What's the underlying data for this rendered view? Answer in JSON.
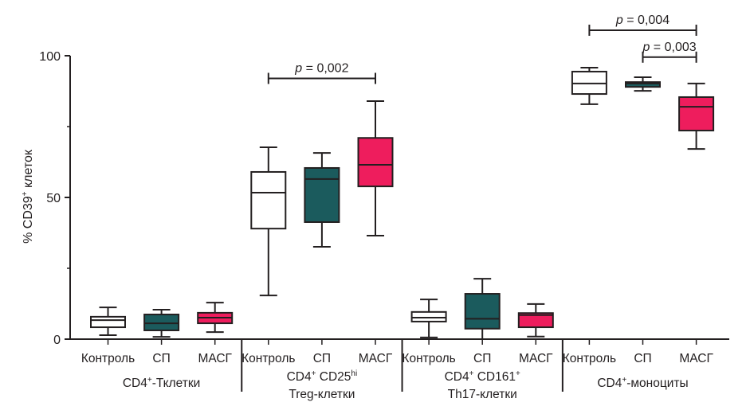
{
  "chart_data": {
    "type": "boxplot",
    "title": "",
    "ylabel": "% CD39+ клеток",
    "ylabel_parts": {
      "pre": "% CD39",
      "sup": "+",
      "post": " клеток"
    },
    "ylim": [
      0,
      100
    ],
    "yticks": [
      0,
      50,
      100
    ],
    "yticks_minor": [
      25,
      75
    ],
    "grid": false,
    "colors": {
      "Контроль": "#ffffff",
      "СП": "#1b5b5d",
      "МАСГ": "#ee1d5d"
    },
    "groups": [
      {
        "name": "CD4+-Тклетки",
        "label_lines": [
          [
            {
              "t": "CD4"
            },
            {
              "t": "+",
              "sup": true
            },
            {
              "t": "-Тклетки"
            }
          ]
        ],
        "boxes": [
          {
            "category": "Контроль",
            "whisker_low": 1.4,
            "q1": 4.2,
            "median": 6.7,
            "q3": 7.9,
            "whisker_high": 11.2
          },
          {
            "category": "СП",
            "whisker_low": 0.8,
            "q1": 3.1,
            "median": 5.6,
            "q3": 8.7,
            "whisker_high": 10.4
          },
          {
            "category": "МАСГ",
            "whisker_low": 2.5,
            "q1": 5.6,
            "median": 7.6,
            "q3": 9.3,
            "whisker_high": 12.9
          }
        ]
      },
      {
        "name": "CD4+ CD25hi Treg-клетки",
        "label_lines": [
          [
            {
              "t": "CD4"
            },
            {
              "t": "+",
              "sup": true
            },
            {
              "t": " CD25"
            },
            {
              "t": "hi",
              "sup": true
            }
          ],
          [
            {
              "t": "Treg-клетки"
            }
          ]
        ],
        "boxes": [
          {
            "category": "Контроль",
            "whisker_low": 15.4,
            "q1": 39.0,
            "median": 51.7,
            "q3": 59.0,
            "whisker_high": 67.7
          },
          {
            "category": "СП",
            "whisker_low": 32.6,
            "q1": 41.3,
            "median": 56.5,
            "q3": 60.4,
            "whisker_high": 65.7
          },
          {
            "category": "МАСГ",
            "whisker_low": 36.5,
            "q1": 53.9,
            "median": 61.5,
            "q3": 71.0,
            "whisker_high": 84.0
          }
        ]
      },
      {
        "name": "CD4+ CD161+ Th17-клетки",
        "label_lines": [
          [
            {
              "t": "CD4"
            },
            {
              "t": "+",
              "sup": true
            },
            {
              "t": " CD161"
            },
            {
              "t": "+",
              "sup": true
            }
          ],
          [
            {
              "t": "Th17-клетки"
            }
          ]
        ],
        "boxes": [
          {
            "category": "Контроль",
            "whisker_low": 0.6,
            "q1": 6.2,
            "median": 7.6,
            "q3": 9.6,
            "whisker_high": 14.0
          },
          {
            "category": "СП",
            "whisker_low": 0.0,
            "q1": 3.7,
            "median": 7.2,
            "q3": 16.0,
            "whisker_high": 21.3
          },
          {
            "category": "МАСГ",
            "whisker_low": 0.9,
            "q1": 4.2,
            "median": 8.5,
            "q3": 9.2,
            "whisker_high": 12.4
          }
        ]
      },
      {
        "name": "CD4+-моноциты",
        "label_lines": [
          [
            {
              "t": "CD4"
            },
            {
              "t": "+",
              "sup": true
            },
            {
              "t": "-моноциты"
            }
          ]
        ],
        "boxes": [
          {
            "category": "Контроль",
            "whisker_low": 82.9,
            "q1": 86.5,
            "median": 90.2,
            "q3": 94.4,
            "whisker_high": 95.8
          },
          {
            "category": "СП",
            "whisker_low": 87.6,
            "q1": 89.0,
            "median": 90.2,
            "q3": 90.7,
            "whisker_high": 92.4
          },
          {
            "category": "МАСГ",
            "whisker_low": 67.1,
            "q1": 73.6,
            "median": 82.0,
            "q3": 85.4,
            "whisker_high": 90.2
          }
        ]
      }
    ],
    "annotations": [
      {
        "text_italic": "p",
        "text": " = 0,002",
        "group": 1,
        "from": 0,
        "to": 2,
        "level": 92
      },
      {
        "text_italic": "p",
        "text": " = 0,004",
        "group": 3,
        "from": 0,
        "to": 2,
        "level": 109
      },
      {
        "text_italic": "p",
        "text": " = 0,003",
        "group": 3,
        "from": 1,
        "to": 2,
        "level": 99.5
      }
    ]
  }
}
